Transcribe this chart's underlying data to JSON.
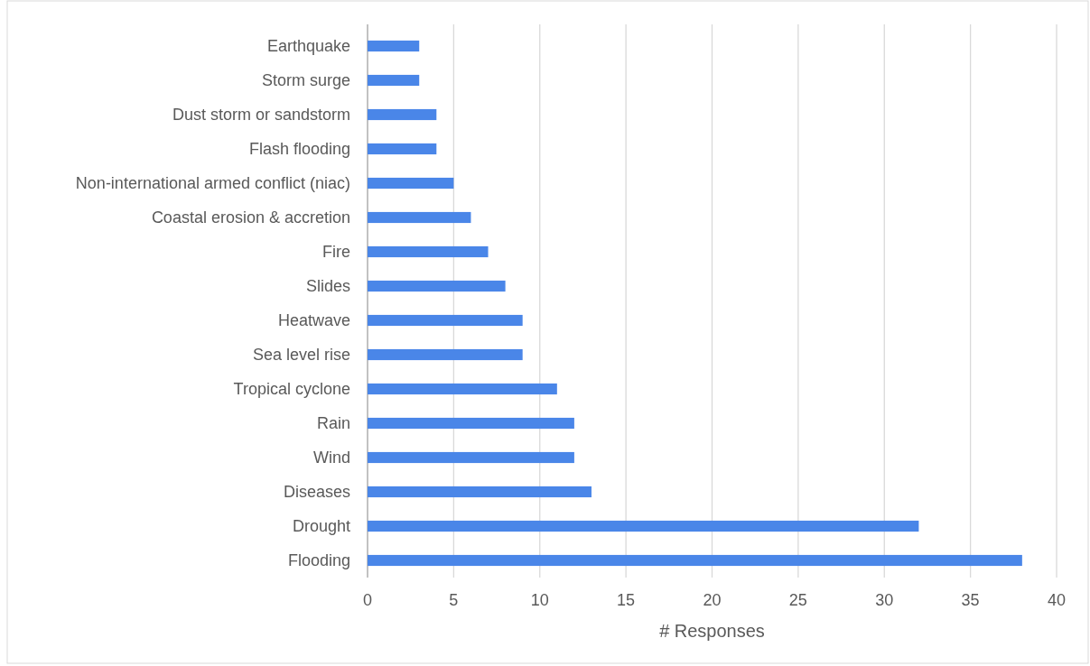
{
  "chart_data": {
    "type": "bar",
    "orientation": "horizontal",
    "xlabel": "# Responses",
    "categories": [
      "Earthquake",
      "Storm surge",
      "Dust storm or sandstorm",
      "Flash flooding",
      "Non-international armed conflict (niac)",
      "Coastal erosion & accretion",
      "Fire",
      "Slides",
      "Heatwave",
      "Sea level rise",
      "Tropical cyclone",
      "Rain",
      "Wind",
      "Diseases",
      "Drought",
      "Flooding"
    ],
    "values": [
      3,
      3,
      4,
      4,
      5,
      6,
      7,
      8,
      9,
      9,
      11,
      12,
      12,
      13,
      32,
      38
    ],
    "color": "#4a86e8",
    "xlim": [
      0,
      40
    ],
    "xticks": [
      0,
      5,
      10,
      15,
      20,
      25,
      30,
      35,
      40
    ],
    "grid": "x"
  }
}
